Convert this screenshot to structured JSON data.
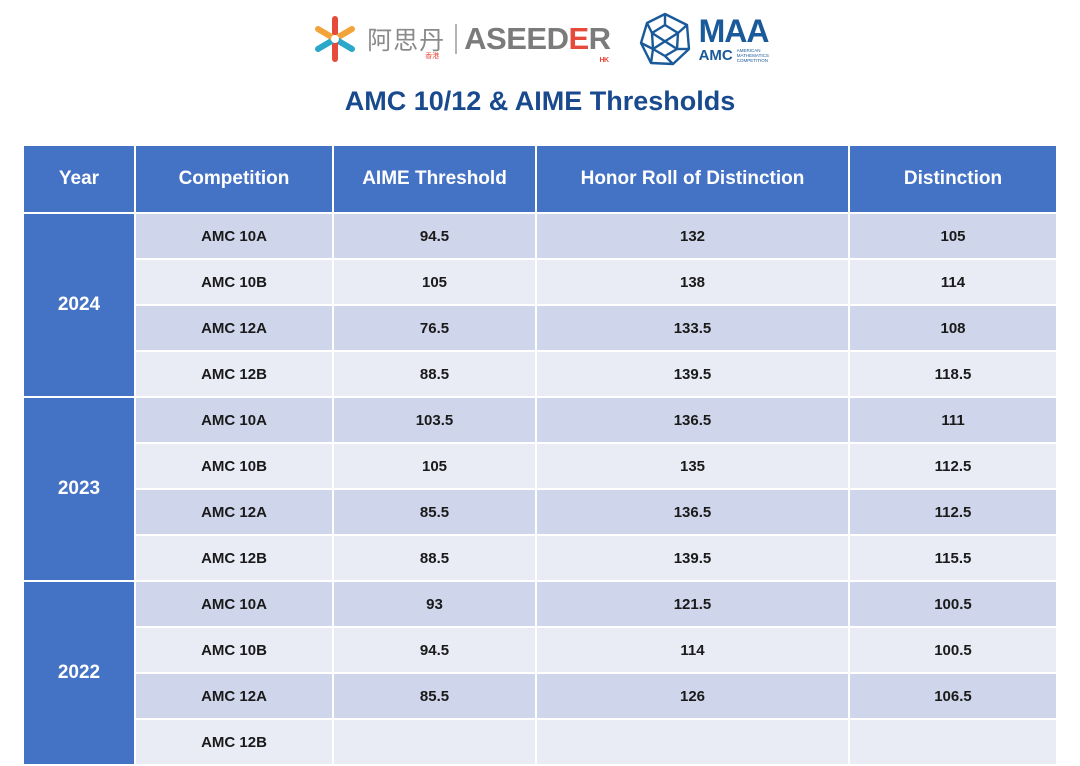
{
  "logos": {
    "aseeder_cn": "阿思丹",
    "aseeder_cn_sub": "香港",
    "aseeder_en_a": "ASEED",
    "aseeder_en_b": "E",
    "aseeder_en_c": "R",
    "aseeder_hk": "HK",
    "maa": "MAA",
    "amc": "AMC",
    "amc_l1": "American",
    "amc_l2": "Mathematics",
    "amc_l3": "Competition"
  },
  "title": "AMC 10/12 & AIME Thresholds",
  "headers": [
    "Year",
    "Competition",
    "AIME Threshold",
    "Honor Roll of Distinction",
    "Distinction"
  ],
  "groups": [
    {
      "year": "2024",
      "rows": [
        [
          "AMC 10A",
          "94.5",
          "132",
          "105"
        ],
        [
          "AMC 10B",
          "105",
          "138",
          "114"
        ],
        [
          "AMC 12A",
          "76.5",
          "133.5",
          "108"
        ],
        [
          "AMC 12B",
          "88.5",
          "139.5",
          "118.5"
        ]
      ]
    },
    {
      "year": "2023",
      "rows": [
        [
          "AMC 10A",
          "103.5",
          "136.5",
          "111"
        ],
        [
          "AMC 10B",
          "105",
          "135",
          "112.5"
        ],
        [
          "AMC 12A",
          "85.5",
          "136.5",
          "112.5"
        ],
        [
          "AMC 12B",
          "88.5",
          "139.5",
          "115.5"
        ]
      ]
    },
    {
      "year": "2022",
      "rows": [
        [
          "AMC 10A",
          "93",
          "121.5",
          "100.5"
        ],
        [
          "AMC 10B",
          "94.5",
          "114",
          "100.5"
        ],
        [
          "AMC 12A",
          "85.5",
          "126",
          "106.5"
        ],
        [
          "AMC 12B",
          "",
          "",
          ""
        ]
      ]
    }
  ],
  "colors": {
    "header_bg": "#4472c4",
    "row_odd": "#cfd5ea",
    "row_even": "#e9ebf5",
    "title": "#1a4a8e",
    "accent_red": "#e54a3a"
  }
}
